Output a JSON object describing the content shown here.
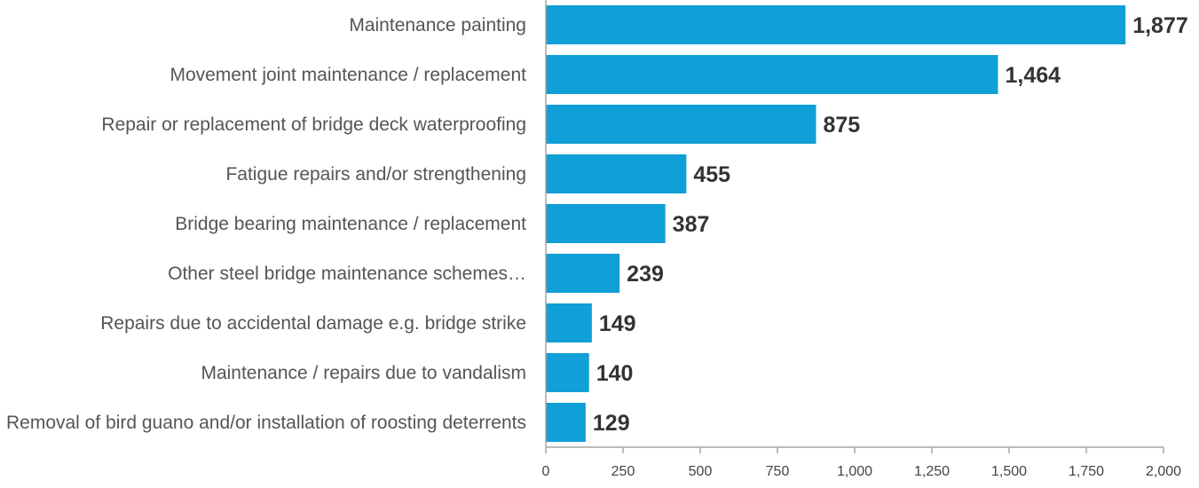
{
  "chart_data": {
    "type": "bar",
    "orientation": "horizontal",
    "title": "",
    "xlabel": "",
    "ylabel": "",
    "categories": [
      "Maintenance painting",
      "Movement joint maintenance / replacement",
      "Repair or replacement of bridge deck waterproofing",
      "Fatigue repairs and/or strengthening",
      "Bridge bearing maintenance / replacement",
      "Other steel bridge maintenance schemes…",
      "Repairs due to accidental damage e.g. bridge strike",
      "Maintenance / repairs due to vandalism",
      "Removal of bird guano and/or installation of roosting deterrents"
    ],
    "values": [
      1877,
      1464,
      875,
      455,
      387,
      239,
      149,
      140,
      129
    ],
    "value_labels": [
      "1,877",
      "1,464",
      "875",
      "455",
      "387",
      "239",
      "149",
      "140",
      "129"
    ],
    "xlim": [
      0,
      2000
    ],
    "x_ticks": [
      0,
      250,
      500,
      750,
      1000,
      1250,
      1500,
      1750,
      2000
    ],
    "x_tick_labels": [
      "0",
      "250",
      "500",
      "750",
      "1,000",
      "1,250",
      "1,500",
      "1,750",
      "2,000"
    ],
    "grid": false,
    "legend": "none",
    "bar_color": "#109fd6",
    "axis_color": "#a6a6a6"
  }
}
